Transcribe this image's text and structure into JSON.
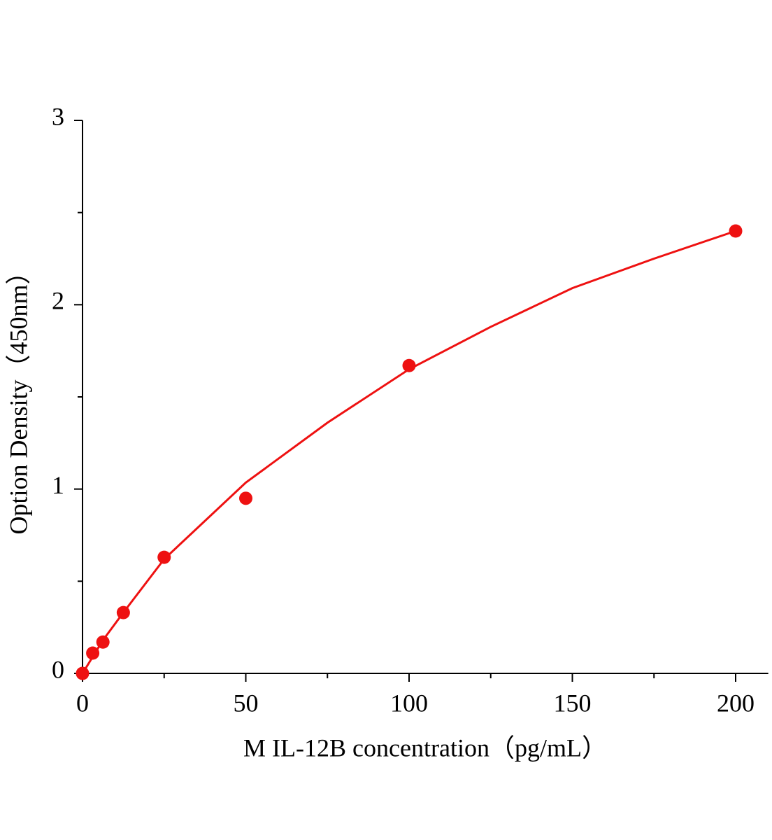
{
  "chart_data": {
    "type": "scatter",
    "x_label": "M IL-12B concentration（pg/mL）",
    "y_label": "Option Density（450nm）",
    "series": [
      {
        "mode": "markers",
        "color": "#ee1111",
        "x": [
          0,
          3.125,
          6.25,
          12.5,
          25,
          50,
          100,
          200
        ],
        "values": [
          0,
          0.11,
          0.17,
          0.33,
          0.63,
          0.95,
          1.67,
          2.4
        ]
      },
      {
        "mode": "line",
        "color": "#ee1111",
        "x": [
          0,
          6.25,
          12.5,
          25,
          50,
          75,
          100,
          125,
          150,
          175,
          200
        ],
        "values": [
          0,
          0.18,
          0.33,
          0.62,
          1.035,
          1.36,
          1.65,
          1.88,
          2.09,
          2.25,
          2.4
        ]
      }
    ],
    "xlim": [
      0,
      210
    ],
    "xticks": [
      0,
      50,
      100,
      150,
      200
    ],
    "x_minor_ticks": [
      25,
      75,
      125,
      175
    ],
    "ylim": [
      0,
      3
    ],
    "yticks": [
      0,
      1,
      2,
      3
    ],
    "y_minor_ticks": [
      0.5,
      1.5,
      2.5
    ]
  }
}
